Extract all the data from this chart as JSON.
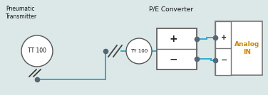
{
  "bg_color": "#dce8e8",
  "line_color": "#33aacc",
  "text_color_black": "#111111",
  "text_color_orange": "#cc8800",
  "transmitter_label": "Pneumatic\nTransmitter",
  "transmitter_tag": "TT 100",
  "converter_label": "P/E Converter",
  "converter_tag": "TY 100",
  "analog_label": "Analog\nIN",
  "dot_color": "#556677",
  "wire_lw": 1.4,
  "fig_w": 3.76,
  "fig_h": 1.34,
  "dpi": 100
}
